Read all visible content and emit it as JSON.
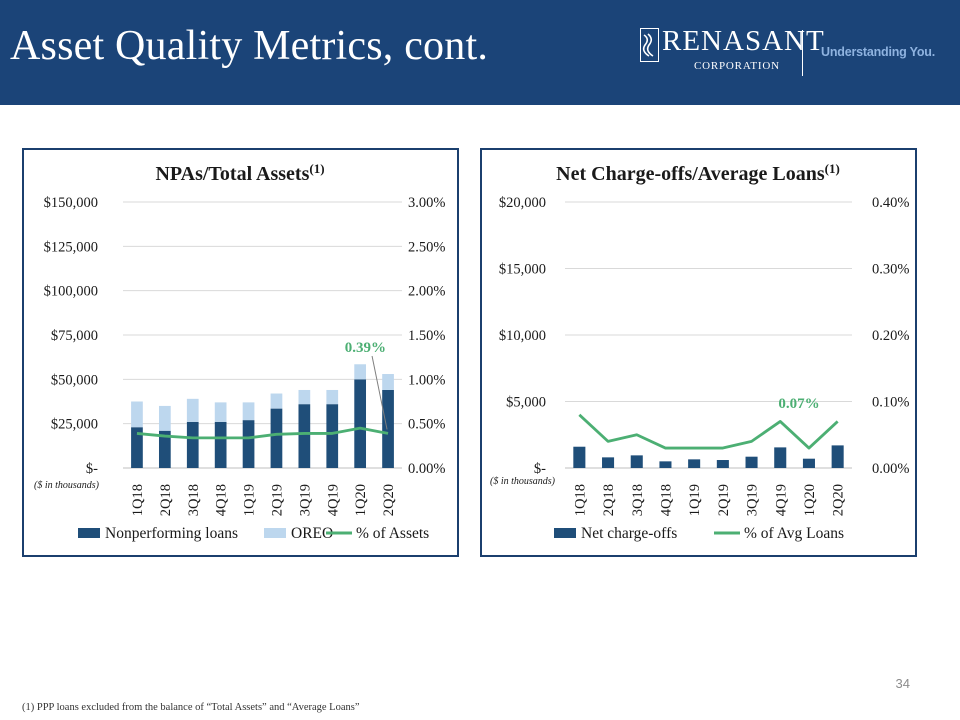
{
  "header": {
    "title": "Asset Quality Metrics, cont.",
    "logo_name": "RENASANT",
    "logo_sub": "CORPORATION",
    "tagline": "Understanding You."
  },
  "page_number": "34",
  "footnote": "(1)  PPP loans excluded from the balance of “Total Assets” and “Average Loans”",
  "colors": {
    "header": "#1b4478",
    "bar_dark": "#1f4e79",
    "bar_light": "#bdd7ee",
    "line": "#4caf73",
    "panel_border": "#1b3f6e"
  },
  "chart_data": [
    {
      "type": "bar",
      "stacked": true,
      "title": "NPAs/Total Assets",
      "title_sup": "(1)",
      "categories": [
        "1Q18",
        "2Q18",
        "3Q18",
        "4Q18",
        "1Q19",
        "2Q19",
        "3Q19",
        "4Q19",
        "1Q20",
        "2Q20"
      ],
      "series": [
        {
          "name": "Nonperforming loans",
          "kind": "bar",
          "axis": "left",
          "color": "#1f4e79",
          "values": [
            23000,
            21000,
            26000,
            26000,
            27000,
            33500,
            36000,
            36000,
            50000,
            44000
          ]
        },
        {
          "name": "OREO",
          "kind": "bar",
          "axis": "left",
          "color": "#bdd7ee",
          "values": [
            14500,
            14000,
            13000,
            11000,
            10000,
            8500,
            8000,
            8000,
            8500,
            9000
          ]
        },
        {
          "name": "% of Assets",
          "kind": "line",
          "axis": "right",
          "color": "#4caf73",
          "values": [
            0.0039,
            0.0036,
            0.0034,
            0.0034,
            0.0034,
            0.0038,
            0.0039,
            0.0039,
            0.0045,
            0.0039
          ]
        }
      ],
      "left_axis": {
        "min": 0,
        "max": 150000,
        "ticks": [
          "$-",
          "$25,000",
          "$50,000",
          "$75,000",
          "$100,000",
          "$125,000",
          "$150,000"
        ]
      },
      "right_axis": {
        "min": 0,
        "max": 0.03,
        "ticks": [
          "0.00%",
          "0.50%",
          "1.00%",
          "1.50%",
          "2.00%",
          "2.50%",
          "3.00%"
        ]
      },
      "unit_note": "($ in thousands)",
      "callout": {
        "text": "0.39%",
        "index": 9
      },
      "legend": [
        "Nonperforming loans",
        "OREO",
        "% of Assets"
      ],
      "legend_position": "bottom",
      "grid": true
    },
    {
      "type": "bar",
      "title": "Net Charge-offs/Average Loans",
      "title_sup": "(1)",
      "categories": [
        "1Q18",
        "2Q18",
        "3Q18",
        "4Q18",
        "1Q19",
        "2Q19",
        "3Q19",
        "4Q19",
        "1Q20",
        "2Q20"
      ],
      "series": [
        {
          "name": "Net charge-offs",
          "kind": "bar",
          "axis": "left",
          "color": "#1f4e79",
          "values": [
            1600,
            800,
            950,
            500,
            650,
            600,
            850,
            1550,
            700,
            1700
          ]
        },
        {
          "name": "% of Avg Loans",
          "kind": "line",
          "axis": "right",
          "color": "#4caf73",
          "values": [
            0.0008,
            0.0004,
            0.0005,
            0.0003,
            0.0003,
            0.0003,
            0.0004,
            0.0007,
            0.0003,
            0.0007
          ]
        }
      ],
      "left_axis": {
        "min": 0,
        "max": 20000,
        "ticks": [
          "$-",
          "$5,000",
          "$10,000",
          "$15,000",
          "$20,000"
        ]
      },
      "right_axis": {
        "min": 0,
        "max": 0.004,
        "ticks": [
          "0.00%",
          "0.10%",
          "0.20%",
          "0.30%",
          "0.40%"
        ]
      },
      "unit_note": "($ in thousands)",
      "callout": {
        "text": "0.07%",
        "index": 9
      },
      "legend": [
        "Net charge-offs",
        "% of Avg Loans"
      ],
      "legend_position": "bottom",
      "grid": true
    }
  ]
}
